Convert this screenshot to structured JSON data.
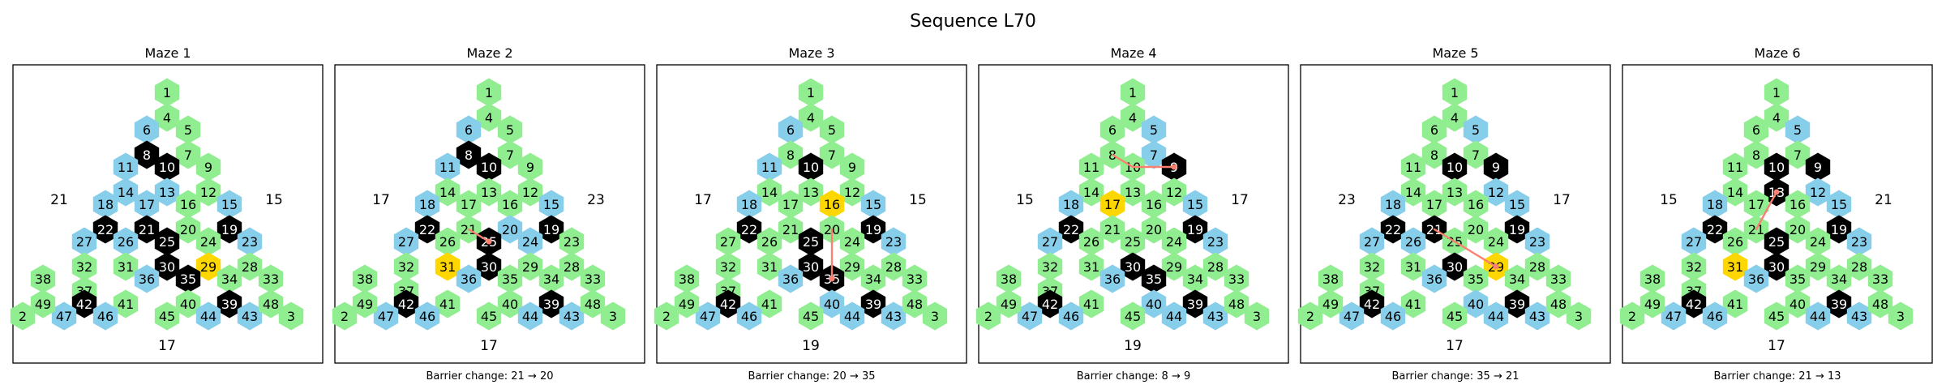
{
  "title": "Sequence L70",
  "colors": {
    "green": "#90ee90",
    "blue": "#87ceeb",
    "black": "#000000",
    "gold": "#ffd700",
    "path": "#fa8072"
  },
  "mazes": [
    {
      "title": "Maze 1",
      "side_left": "21",
      "side_right": "15",
      "bottom": "17",
      "caption": "",
      "blue": [
        6,
        11,
        13,
        14,
        15,
        17,
        18,
        23,
        26,
        27,
        36,
        43,
        44,
        46,
        47
      ],
      "black": [
        8,
        10,
        19,
        21,
        22,
        25,
        30,
        35,
        39,
        42
      ],
      "gold": [
        29
      ],
      "path": []
    },
    {
      "title": "Maze 2",
      "side_left": "17",
      "side_right": "23",
      "bottom": "17",
      "caption": "Barrier change: 21 → 20",
      "blue": [
        6,
        11,
        15,
        18,
        20,
        24,
        27,
        36,
        43,
        44,
        46,
        47
      ],
      "black": [
        8,
        10,
        19,
        22,
        25,
        30,
        39,
        42
      ],
      "gold": [
        31
      ],
      "path": [
        21,
        25
      ]
    },
    {
      "title": "Maze 3",
      "side_left": "17",
      "side_right": "15",
      "bottom": "19",
      "caption": "Barrier change: 20 → 35",
      "blue": [
        6,
        11,
        15,
        18,
        23,
        36,
        40,
        43,
        44,
        46,
        47
      ],
      "black": [
        10,
        19,
        22,
        25,
        30,
        35,
        39,
        42
      ],
      "gold": [
        16
      ],
      "path": [
        20,
        35
      ]
    },
    {
      "title": "Maze 4",
      "side_left": "15",
      "side_right": "17",
      "bottom": "19",
      "caption": "Barrier change: 8 → 9",
      "blue": [
        5,
        7,
        15,
        18,
        23,
        27,
        36,
        40,
        43,
        44,
        46,
        47
      ],
      "black": [
        9,
        19,
        22,
        30,
        35,
        39,
        42
      ],
      "gold": [
        17
      ],
      "path": [
        8,
        10,
        9
      ]
    },
    {
      "title": "Maze 5",
      "side_left": "23",
      "side_right": "17",
      "bottom": "17",
      "caption": "Barrier change: 35 → 21",
      "blue": [
        5,
        12,
        15,
        18,
        23,
        26,
        27,
        36,
        40,
        43,
        44,
        46,
        47
      ],
      "black": [
        9,
        10,
        19,
        21,
        22,
        30,
        39,
        42
      ],
      "gold": [
        29
      ],
      "path": [
        21,
        25,
        29
      ]
    },
    {
      "title": "Maze 6",
      "side_left": "15",
      "side_right": "21",
      "bottom": "17",
      "caption": "Barrier change: 21 → 13",
      "blue": [
        5,
        12,
        15,
        18,
        23,
        27,
        36,
        43,
        44,
        46,
        47
      ],
      "black": [
        9,
        10,
        13,
        19,
        22,
        25,
        30,
        39,
        42
      ],
      "gold": [
        31
      ],
      "path": [
        21,
        13
      ]
    }
  ]
}
